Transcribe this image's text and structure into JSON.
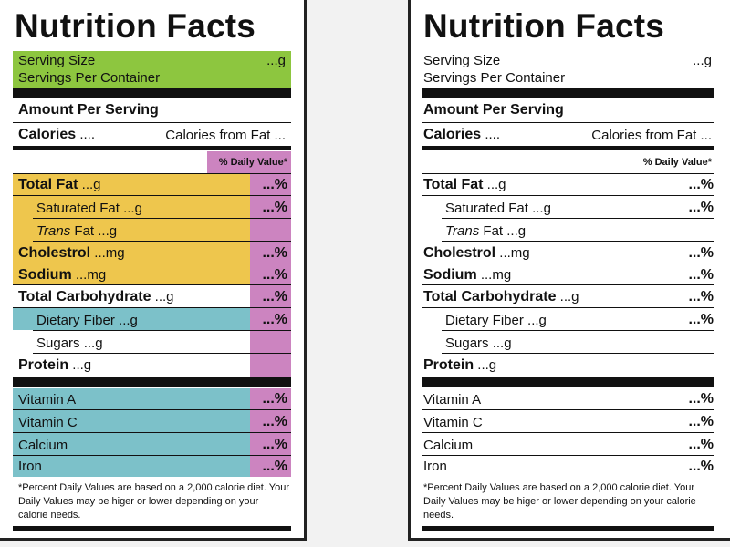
{
  "title": "Nutrition Facts",
  "serving_size_label": "Serving Size",
  "serving_size_value": "...g",
  "servings_per_container_label": "Servings Per Container",
  "amount_per_serving": "Amount Per Serving",
  "calories_label": "Calories",
  "calories_value": "....",
  "calories_from_fat": "Calories from Fat ...",
  "daily_value_header": "% Daily Value*",
  "rows": {
    "total_fat": {
      "label": "Total Fat",
      "amount": "...g",
      "dv": "...%"
    },
    "saturated_fat": {
      "label": "Saturated Fat",
      "amount": "...g",
      "dv": "...%"
    },
    "trans_fat": {
      "label": "Trans",
      "label_rest": "Fat",
      "amount": "...g"
    },
    "cholestrol": {
      "label": "Cholestrol",
      "amount": "...mg",
      "dv": "...%"
    },
    "sodium": {
      "label": "Sodium",
      "amount": "...mg",
      "dv": "...%"
    },
    "total_carbohydrate": {
      "label": "Total Carbohydrate",
      "amount": "...g",
      "dv": "...%"
    },
    "dietary_fiber": {
      "label": "Dietary Fiber",
      "amount": "...g",
      "dv": "...%"
    },
    "sugars": {
      "label": "Sugars",
      "amount": "...g"
    },
    "protein": {
      "label": "Protein",
      "amount": "...g"
    }
  },
  "vitamins": [
    {
      "label": "Vitamin A",
      "dv": "...%"
    },
    {
      "label": "Vitamin C",
      "dv": "...%"
    },
    {
      "label": "Calcium",
      "dv": "...%"
    },
    {
      "label": "Iron",
      "dv": "...%"
    }
  ],
  "footnote": "*Percent Daily Values are based on a 2,000 calorie diet. Your Daily Values may be higer or lower depending on your calorie needs.",
  "colors": {
    "green": "#8dc63f",
    "yellow": "#eec64d",
    "blue": "#7cc1c9",
    "pink": "#cc84c0"
  }
}
